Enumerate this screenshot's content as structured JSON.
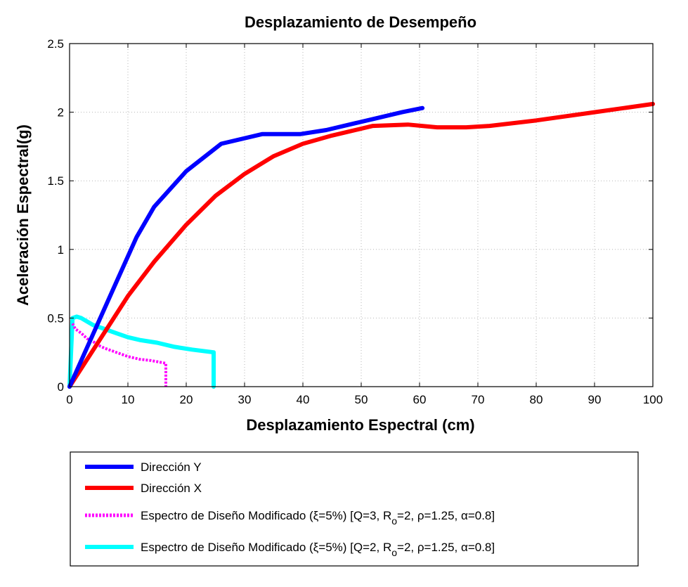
{
  "chart_data": {
    "type": "line",
    "title": "Desplazamiento de Desempeño",
    "xlabel": "Desplazamiento Espectral (cm)",
    "ylabel": "Aceleración Espectral(g)",
    "xlim": [
      0,
      100
    ],
    "ylim": [
      0,
      2.5
    ],
    "xticks": [
      "0",
      "10",
      "20",
      "30",
      "40",
      "50",
      "60",
      "70",
      "80",
      "90",
      "100"
    ],
    "yticks": [
      "0",
      "0.5",
      "1",
      "1.5",
      "2",
      "2.5"
    ],
    "grid": true,
    "legend_position": "below",
    "series": [
      {
        "name": "Dirección Y",
        "color": "#0000ff",
        "style": "solid",
        "x": [
          0,
          4,
          8,
          11.5,
          14.5,
          20,
          26,
          33,
          39.5,
          44,
          49,
          53,
          57,
          60.5
        ],
        "y": [
          0,
          0.38,
          0.76,
          1.09,
          1.31,
          1.57,
          1.77,
          1.84,
          1.84,
          1.87,
          1.92,
          1.96,
          2.0,
          2.03
        ]
      },
      {
        "name": "Dirección X",
        "color": "#ff0000",
        "style": "solid",
        "x": [
          0,
          5,
          10,
          14.5,
          20,
          25,
          30,
          35,
          40,
          45,
          52,
          58,
          63,
          68,
          72,
          80,
          90,
          100
        ],
        "y": [
          0,
          0.33,
          0.66,
          0.91,
          1.18,
          1.39,
          1.55,
          1.68,
          1.77,
          1.83,
          1.9,
          1.91,
          1.89,
          1.89,
          1.9,
          1.94,
          2.0,
          2.06
        ]
      },
      {
        "name": "Espectro de Diseño Modificado (ξ=5%) [Q=3, R",
        "name_sub": "o",
        "name_tail": "=2, ρ=1.25, α=0.8]",
        "color": "#ff00ff",
        "style": "dotted",
        "x": [
          0.5,
          1,
          2,
          3,
          4,
          5,
          6,
          8,
          10,
          12,
          14,
          16.5,
          16.5
        ],
        "y": [
          0.46,
          0.42,
          0.39,
          0.35,
          0.33,
          0.3,
          0.28,
          0.25,
          0.22,
          0.2,
          0.19,
          0.17,
          0
        ]
      },
      {
        "name": "Espectro de Diseño Modificado (ξ=5%) [Q=2, R",
        "name_sub": "o",
        "name_tail": "=2, ρ=1.25, α=0.8]",
        "color": "#00ffff",
        "style": "solid",
        "x": [
          0,
          0.5,
          1.2,
          2,
          4,
          6,
          8,
          10,
          12,
          15,
          18,
          21,
          24.7,
          24.7
        ],
        "y": [
          0,
          0.5,
          0.51,
          0.5,
          0.45,
          0.42,
          0.39,
          0.36,
          0.34,
          0.32,
          0.29,
          0.27,
          0.25,
          0
        ]
      }
    ]
  }
}
